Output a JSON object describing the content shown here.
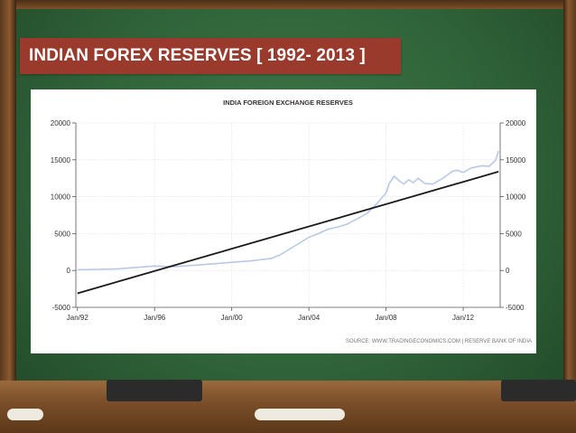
{
  "slide": {
    "title": "INDIAN FOREX RESERVES  [ 1992- 2013 ]"
  },
  "chart_data": {
    "type": "line",
    "title": "INDIA FOREIGN EXCHANGE RESERVES",
    "source": "SOURCE: WWW.TRADINGECONOMICS.COM  |  RESERVE BANK OF INDIA",
    "x_tick_labels": [
      "Jan/92",
      "Jan/96",
      "Jan/00",
      "Jan/04",
      "Jan/08",
      "Jan/12"
    ],
    "y_ticks": [
      20000,
      15000,
      10000,
      5000,
      0,
      -5000
    ],
    "y_tick_labels": [
      "20000",
      "15000",
      "10000",
      "5000",
      "0",
      "-5000"
    ],
    "ylim": [
      -5000,
      20000
    ],
    "xlim": [
      "1991-12",
      "2013-12"
    ],
    "grid": true,
    "series": [
      {
        "x": [
          "1992-01",
          "1993-01",
          "1994-01",
          "1995-01",
          "1996-01",
          "1997-01",
          "1998-01",
          "1999-01",
          "2000-01",
          "2001-01",
          "2002-01",
          "2002-07",
          "2003-01",
          "2003-07",
          "2004-01",
          "2004-07",
          "2005-01",
          "2005-07",
          "2006-01",
          "2006-07",
          "2007-01",
          "2007-07",
          "2008-01",
          "2008-03",
          "2008-06",
          "2008-09",
          "2008-12",
          "2009-03",
          "2009-06",
          "2009-09",
          "2010-01",
          "2010-06",
          "2011-01",
          "2011-06",
          "2011-09",
          "2012-01",
          "2012-06",
          "2013-01",
          "2013-05",
          "2013-09",
          "2013-11"
        ],
        "values": [
          100,
          150,
          200,
          400,
          600,
          500,
          700,
          900,
          1100,
          1300,
          1600,
          2100,
          2900,
          3700,
          4500,
          5000,
          5600,
          5900,
          6300,
          7000,
          7700,
          9000,
          10500,
          11800,
          12800,
          12200,
          11700,
          12300,
          11900,
          12500,
          11800,
          11700,
          12600,
          13400,
          13600,
          13300,
          13900,
          14200,
          14100,
          14900,
          16200
        ],
        "color": "#b7c9e6"
      },
      {
        "x": [
          "1992-01",
          "2013-11"
        ],
        "values": [
          -3100,
          13400
        ],
        "color": "#1a1a1a"
      }
    ]
  },
  "colors": {
    "title_bar": "#9a3a2c",
    "data_line": "#b7c9e6",
    "trend_line": "#1a1a1a"
  }
}
